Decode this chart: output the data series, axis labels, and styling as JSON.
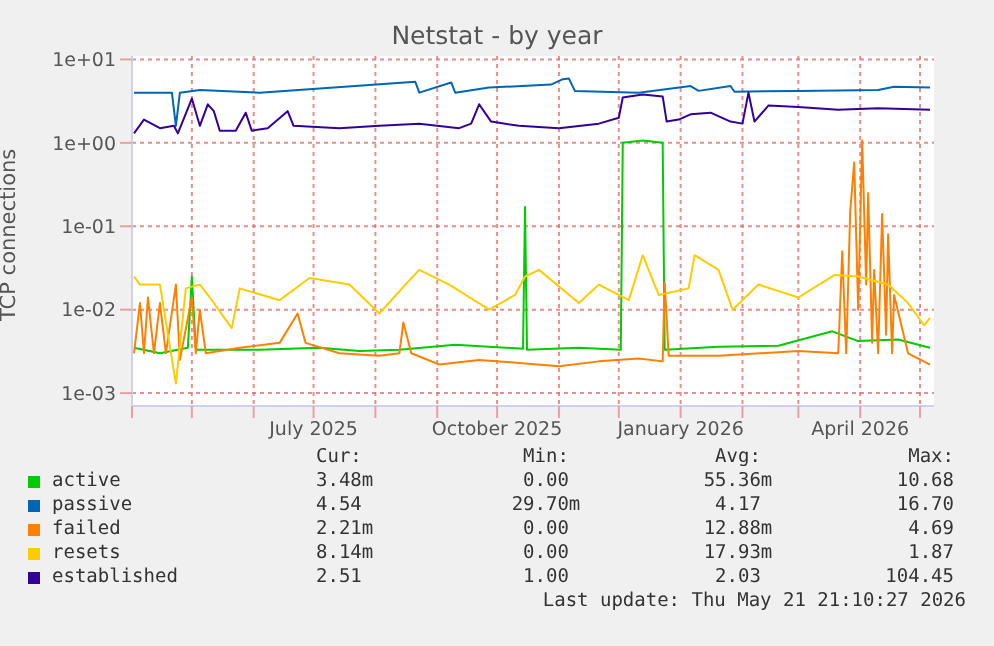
{
  "chart_data": {
    "type": "line",
    "title": "Netstat - by year",
    "ylabel": "TCP connections",
    "log": "y",
    "grid": true,
    "legend": "bottom",
    "xlim": [
      "2025-04-01",
      "2026-05-08"
    ],
    "xticks": [
      {
        "value": "2025-04-01",
        "label": null
      },
      {
        "value": "2025-05-01",
        "label": null
      },
      {
        "value": "2025-06-01",
        "label": null
      },
      {
        "value": "2025-07-01",
        "label": "July 2025"
      },
      {
        "value": "2025-08-01",
        "label": null
      },
      {
        "value": "2025-09-01",
        "label": null
      },
      {
        "value": "2025-10-01",
        "label": "October 2025"
      },
      {
        "value": "2025-11-01",
        "label": null
      },
      {
        "value": "2025-12-01",
        "label": null
      },
      {
        "value": "2026-01-01",
        "label": "January 2026"
      },
      {
        "value": "2026-02-01",
        "label": null
      },
      {
        "value": "2026-03-01",
        "label": null
      },
      {
        "value": "2026-04-01",
        "label": "April 2026"
      },
      {
        "value": "2026-05-01",
        "label": null
      }
    ],
    "ylim": [
      0.0007,
      11
    ],
    "yticks": [
      {
        "value": 0.001,
        "label": "1e-03"
      },
      {
        "value": 0.01,
        "label": "1e-02"
      },
      {
        "value": 0.1,
        "label": "1e-01"
      },
      {
        "value": 1,
        "label": "1e+00"
      },
      {
        "value": 10,
        "label": "1e+01"
      }
    ],
    "series": [
      {
        "name": "active",
        "color": "#00cc00",
        "x": [
          "2025-04-02",
          "2025-04-15",
          "2025-04-29",
          "2025-05-01",
          "2025-05-03",
          "2025-06-04",
          "2025-07-04",
          "2025-07-24",
          "2025-08-13",
          "2025-09-10",
          "2025-10-14",
          "2025-10-15",
          "2025-10-16",
          "2025-11-11",
          "2025-12-02",
          "2025-12-03",
          "2025-12-13",
          "2025-12-23",
          "2025-12-24",
          "2026-01-20",
          "2026-02-19",
          "2026-03-18",
          "2026-03-31",
          "2026-04-20",
          "2026-05-06"
        ],
        "values": [
          0.0035,
          0.003,
          0.0035,
          0.025,
          0.0033,
          0.0033,
          0.0035,
          0.0032,
          0.0033,
          0.0038,
          0.0034,
          0.17,
          0.0033,
          0.0035,
          0.0033,
          1.0,
          1.07,
          1.0,
          0.0033,
          0.0036,
          0.0037,
          0.0055,
          0.0042,
          0.0044,
          0.0035
        ]
      },
      {
        "name": "passive",
        "color": "#0066b3",
        "x": [
          "2025-04-02",
          "2025-04-21",
          "2025-04-23",
          "2025-04-25",
          "2025-05-05",
          "2025-06-04",
          "2025-08-21",
          "2025-08-23",
          "2025-09-08",
          "2025-09-10",
          "2025-09-27",
          "2025-10-28",
          "2025-11-03",
          "2025-11-06",
          "2025-11-09",
          "2025-12-11",
          "2026-01-06",
          "2026-01-10",
          "2026-01-26",
          "2026-01-28",
          "2026-03-01",
          "2026-04-10",
          "2026-04-18",
          "2026-05-06"
        ],
        "values": [
          4.0,
          4.0,
          1.6,
          4.0,
          4.3,
          4.0,
          5.4,
          4.0,
          5.3,
          4.0,
          4.6,
          5.0,
          5.8,
          5.9,
          4.2,
          4.0,
          4.8,
          4.2,
          4.8,
          4.1,
          4.2,
          4.3,
          4.7,
          4.6
        ]
      },
      {
        "name": "failed",
        "color": "#ff8000",
        "x": [
          "2025-04-02",
          "2025-04-05",
          "2025-04-07",
          "2025-04-09",
          "2025-04-12",
          "2025-04-15",
          "2025-04-18",
          "2025-04-23",
          "2025-04-25",
          "2025-05-01",
          "2025-05-03",
          "2025-05-05",
          "2025-05-08",
          "2025-05-25",
          "2025-06-14",
          "2025-06-23",
          "2025-06-27",
          "2025-07-14",
          "2025-08-03",
          "2025-08-13",
          "2025-08-15",
          "2025-08-19",
          "2025-09-02",
          "2025-09-22",
          "2025-10-12",
          "2025-11-01",
          "2025-11-21",
          "2025-12-11",
          "2025-12-23",
          "2025-12-24",
          "2025-12-26",
          "2026-01-20",
          "2026-03-01",
          "2026-03-21",
          "2026-03-23",
          "2026-03-25",
          "2026-03-27",
          "2026-03-29",
          "2026-03-31",
          "2026-04-02",
          "2026-04-04",
          "2026-04-05",
          "2026-04-07",
          "2026-04-08",
          "2026-04-10",
          "2026-04-12",
          "2026-04-14",
          "2026-04-15",
          "2026-04-17",
          "2026-04-18",
          "2026-04-25",
          "2026-05-06"
        ],
        "values": [
          0.003,
          0.012,
          0.003,
          0.014,
          0.003,
          0.012,
          0.003,
          0.02,
          0.0025,
          0.014,
          0.003,
          0.01,
          0.003,
          0.0035,
          0.004,
          0.009,
          0.004,
          0.003,
          0.0028,
          0.003,
          0.007,
          0.003,
          0.0022,
          0.0025,
          0.0023,
          0.0021,
          0.0024,
          0.0026,
          0.0024,
          0.021,
          0.0028,
          0.0028,
          0.0032,
          0.003,
          0.05,
          0.003,
          0.15,
          0.58,
          0.01,
          1.07,
          0.02,
          0.25,
          0.004,
          0.03,
          0.003,
          0.14,
          0.005,
          0.08,
          0.003,
          0.015,
          0.003,
          0.0022
        ]
      },
      {
        "name": "resets",
        "color": "#ffcc00",
        "x": [
          "2025-04-02",
          "2025-04-05",
          "2025-04-15",
          "2025-04-23",
          "2025-04-28",
          "2025-05-05",
          "2025-05-10",
          "2025-05-21",
          "2025-05-25",
          "2025-06-14",
          "2025-06-29",
          "2025-07-19",
          "2025-08-03",
          "2025-08-16",
          "2025-08-23",
          "2025-09-07",
          "2025-09-27",
          "2025-10-10",
          "2025-10-15",
          "2025-10-22",
          "2025-11-11",
          "2025-11-21",
          "2025-12-06",
          "2025-12-13",
          "2025-12-21",
          "2026-01-05",
          "2026-01-08",
          "2026-01-20",
          "2026-01-27",
          "2026-02-09",
          "2026-03-01",
          "2026-03-19",
          "2026-03-31",
          "2026-04-15",
          "2026-04-25",
          "2026-05-03",
          "2026-05-06"
        ],
        "values": [
          0.025,
          0.02,
          0.02,
          0.0013,
          0.018,
          0.02,
          0.014,
          0.006,
          0.018,
          0.013,
          0.024,
          0.02,
          0.009,
          0.02,
          0.03,
          0.02,
          0.01,
          0.015,
          0.025,
          0.03,
          0.012,
          0.02,
          0.013,
          0.045,
          0.015,
          0.018,
          0.045,
          0.03,
          0.01,
          0.02,
          0.014,
          0.026,
          0.025,
          0.02,
          0.012,
          0.0065,
          0.008
        ]
      },
      {
        "name": "established",
        "color": "#330099",
        "x": [
          "2025-04-02",
          "2025-04-07",
          "2025-04-15",
          "2025-04-22",
          "2025-04-24",
          "2025-05-01",
          "2025-05-05",
          "2025-05-09",
          "2025-05-12",
          "2025-05-15",
          "2025-05-23",
          "2025-05-28",
          "2025-05-31",
          "2025-06-08",
          "2025-06-18",
          "2025-06-21",
          "2025-07-14",
          "2025-08-03",
          "2025-08-23",
          "2025-09-12",
          "2025-09-18",
          "2025-09-22",
          "2025-09-28",
          "2025-10-12",
          "2025-11-01",
          "2025-11-21",
          "2025-12-01",
          "2025-12-03",
          "2025-12-13",
          "2025-12-23",
          "2025-12-25",
          "2025-12-31",
          "2026-01-06",
          "2026-01-16",
          "2026-01-26",
          "2026-02-01",
          "2026-02-04",
          "2026-02-07",
          "2026-02-14",
          "2026-03-01",
          "2026-03-21",
          "2026-04-10",
          "2026-05-06"
        ],
        "values": [
          1.3,
          1.9,
          1.5,
          1.6,
          1.3,
          3.4,
          1.6,
          2.9,
          2.4,
          1.4,
          1.4,
          2.3,
          1.4,
          1.5,
          2.4,
          1.6,
          1.5,
          1.6,
          1.7,
          1.5,
          1.7,
          2.9,
          1.8,
          1.6,
          1.5,
          1.7,
          2.0,
          3.5,
          3.8,
          3.6,
          1.8,
          1.9,
          2.2,
          2.3,
          1.8,
          1.7,
          4.0,
          1.8,
          2.8,
          2.7,
          2.5,
          2.6,
          2.5
        ]
      }
    ],
    "annotations": [
      "Cur:",
      "Min:",
      "Avg:",
      "Max:",
      "3.48m",
      "0.00",
      "55.36m",
      "10.68",
      "4.54",
      "29.70m",
      "4.17",
      "16.70",
      "2.21m",
      "0.00",
      "12.88m",
      "4.69",
      "8.14m",
      "0.00",
      "17.93m",
      "1.87",
      "2.51",
      "1.00",
      "2.03",
      "104.45",
      "Last update: Thu May 21 21:10:27 2026"
    ]
  }
}
